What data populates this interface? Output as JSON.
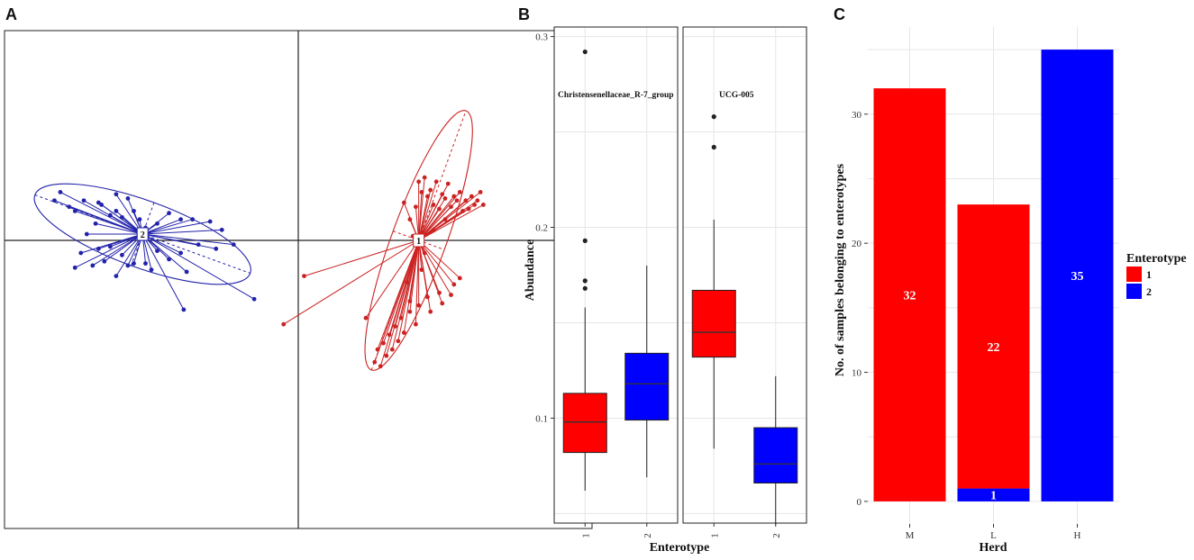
{
  "panels": {
    "a": {
      "letter": "A"
    },
    "b": {
      "letter": "B"
    },
    "c": {
      "letter": "C"
    }
  },
  "colors": {
    "enterotype1": "#ff0000",
    "enterotype2": "#0000ff",
    "pcoa1": "#cc2222",
    "pcoa2": "#2222aa"
  },
  "chart_data": [
    {
      "id": "A",
      "type": "scatter",
      "title": "",
      "xlabel": "",
      "ylabel": "",
      "xlim": [
        -1,
        1
      ],
      "ylim": [
        -1,
        1
      ],
      "clusters": [
        {
          "name": "2",
          "color": "#2222aa",
          "centroid": [
            -0.53,
            0.03
          ],
          "ellipse": {
            "rx": 0.39,
            "ry": 0.16,
            "angle": 20
          },
          "points": [
            [
              -0.83,
              0.19
            ],
            [
              -0.78,
              0.16
            ],
            [
              -0.76,
              0.14
            ],
            [
              -0.73,
              0.19
            ],
            [
              -0.69,
              0.08
            ],
            [
              -0.67,
              0.17
            ],
            [
              -0.64,
              0.12
            ],
            [
              -0.62,
              0.14
            ],
            [
              -0.6,
              0.11
            ],
            [
              -0.58,
              0.2
            ],
            [
              -0.56,
              0.14
            ],
            [
              -0.54,
              0.1
            ],
            [
              -0.52,
              0.06
            ],
            [
              -0.48,
              0.08
            ],
            [
              -0.44,
              0.13
            ],
            [
              -0.4,
              0.1
            ],
            [
              -0.36,
              0.1
            ],
            [
              -0.3,
              0.09
            ],
            [
              -0.26,
              0.05
            ],
            [
              -0.22,
              -0.02
            ],
            [
              -0.28,
              -0.04
            ],
            [
              -0.34,
              -0.02
            ],
            [
              -0.4,
              -0.06
            ],
            [
              -0.44,
              -0.09
            ],
            [
              -0.48,
              -0.05
            ],
            [
              -0.52,
              -0.11
            ],
            [
              -0.56,
              -0.11
            ],
            [
              -0.6,
              -0.07
            ],
            [
              -0.64,
              -0.03
            ],
            [
              -0.68,
              -0.04
            ],
            [
              -0.72,
              0.03
            ],
            [
              -0.74,
              -0.06
            ],
            [
              -0.7,
              -0.12
            ],
            [
              -0.66,
              -0.1
            ],
            [
              -0.62,
              -0.17
            ],
            [
              -0.58,
              -0.12
            ],
            [
              -0.5,
              -0.14
            ],
            [
              -0.38,
              -0.15
            ],
            [
              -0.39,
              -0.33
            ],
            [
              -0.76,
              -0.13
            ],
            [
              -0.15,
              -0.28
            ],
            [
              -0.81,
              0.23
            ],
            [
              -0.68,
              0.18
            ],
            [
              -0.62,
              0.22
            ]
          ]
        },
        {
          "name": "1",
          "color": "#cc2222",
          "centroid": [
            0.41,
            0.0
          ],
          "ellipse": {
            "rx": 0.47,
            "ry": 0.13,
            "angle": -70
          },
          "points": [
            [
              0.41,
              0.28
            ],
            [
              0.43,
              0.3
            ],
            [
              0.45,
              0.24
            ],
            [
              0.47,
              0.28
            ],
            [
              0.49,
              0.22
            ],
            [
              0.51,
              0.27
            ],
            [
              0.53,
              0.21
            ],
            [
              0.55,
              0.23
            ],
            [
              0.57,
              0.19
            ],
            [
              0.59,
              0.21
            ],
            [
              0.61,
              0.19
            ],
            [
              0.63,
              0.17
            ],
            [
              0.62,
              0.23
            ],
            [
              0.6,
              0.17
            ],
            [
              0.56,
              0.14
            ],
            [
              0.54,
              0.19
            ],
            [
              0.52,
              0.16
            ],
            [
              0.5,
              0.2
            ],
            [
              0.48,
              0.15
            ],
            [
              0.46,
              0.17
            ],
            [
              0.44,
              0.21
            ],
            [
              0.42,
              0.23
            ],
            [
              0.4,
              0.16
            ],
            [
              0.38,
              0.1
            ],
            [
              0.36,
              0.18
            ],
            [
              0.58,
              0.15
            ],
            [
              0.55,
              -0.18
            ],
            [
              0.53,
              -0.21
            ],
            [
              0.48,
              -0.25
            ],
            [
              0.44,
              -0.27
            ],
            [
              0.41,
              -0.31
            ],
            [
              0.38,
              -0.34
            ],
            [
              0.35,
              -0.37
            ],
            [
              0.33,
              -0.41
            ],
            [
              0.31,
              -0.45
            ],
            [
              0.29,
              -0.49
            ],
            [
              0.27,
              -0.52
            ],
            [
              0.3,
              -0.55
            ],
            [
              0.28,
              -0.6
            ],
            [
              0.26,
              -0.58
            ],
            [
              0.32,
              -0.52
            ],
            [
              0.34,
              -0.48
            ],
            [
              0.36,
              -0.44
            ],
            [
              0.4,
              -0.4
            ],
            [
              0.45,
              -0.34
            ],
            [
              0.49,
              -0.3
            ],
            [
              0.52,
              -0.26
            ],
            [
              0.23,
              -0.37
            ],
            [
              0.02,
              -0.17
            ],
            [
              -0.05,
              -0.4
            ],
            [
              0.42,
              -0.14
            ],
            [
              0.38,
              -0.29
            ],
            [
              0.43,
              -0.06
            ],
            [
              0.39,
              0.02
            ],
            [
              0.46,
              0.05
            ],
            [
              0.5,
              0.1
            ],
            [
              0.37,
              -0.2
            ]
          ]
        }
      ]
    },
    {
      "id": "B",
      "type": "box",
      "xlabel": "Enterotype",
      "ylabel": "Abundance",
      "ylim": [
        0.045,
        0.305
      ],
      "yticks": [
        0.1,
        0.2,
        0.3
      ],
      "yticklabels": [
        "0.1",
        "0.2",
        "0.3"
      ],
      "facets": [
        {
          "label": "Christensenellaceae_R-7_group",
          "boxes": [
            {
              "category": "1",
              "color": "#ff0000",
              "min": 0.062,
              "q1": 0.082,
              "median": 0.098,
              "q3": 0.113,
              "max": 0.158,
              "outliers": [
                0.168,
                0.172,
                0.193,
                0.292
              ]
            },
            {
              "category": "2",
              "color": "#0000ff",
              "min": 0.069,
              "q1": 0.099,
              "median": 0.118,
              "q3": 0.134,
              "max": 0.18,
              "outliers": []
            }
          ]
        },
        {
          "label": "UCG-005",
          "boxes": [
            {
              "category": "1",
              "color": "#ff0000",
              "min": 0.084,
              "q1": 0.132,
              "median": 0.145,
              "q3": 0.167,
              "max": 0.204,
              "outliers": [
                0.242,
                0.258
              ]
            },
            {
              "category": "2",
              "color": "#0000ff",
              "min": 0.044,
              "q1": 0.066,
              "median": 0.076,
              "q3": 0.095,
              "max": 0.122,
              "outliers": []
            }
          ]
        }
      ]
    },
    {
      "id": "C",
      "type": "bar",
      "stacked": true,
      "categories": [
        "M",
        "L",
        "H"
      ],
      "series": [
        {
          "name": "1",
          "color": "#ff0000",
          "values": [
            32,
            22,
            0
          ]
        },
        {
          "name": "2",
          "color": "#0000ff",
          "values": [
            0,
            1,
            35
          ]
        }
      ],
      "bar_labels": [
        {
          "category": "M",
          "series": "1",
          "text": "32"
        },
        {
          "category": "L",
          "series": "1",
          "text": "22"
        },
        {
          "category": "L",
          "series": "2",
          "text": "1"
        },
        {
          "category": "H",
          "series": "2",
          "text": "35"
        }
      ],
      "xlabel": "Herd",
      "ylabel": "No. of samples belonging to enterotypes",
      "ylim": [
        -1.75,
        36.75
      ],
      "yticks": [
        0,
        10,
        20,
        30
      ],
      "yticklabels": [
        "0",
        "10",
        "20",
        "30"
      ],
      "legend": {
        "title": "Enterotype",
        "entries": [
          "1",
          "2"
        ],
        "position": "right"
      }
    }
  ]
}
